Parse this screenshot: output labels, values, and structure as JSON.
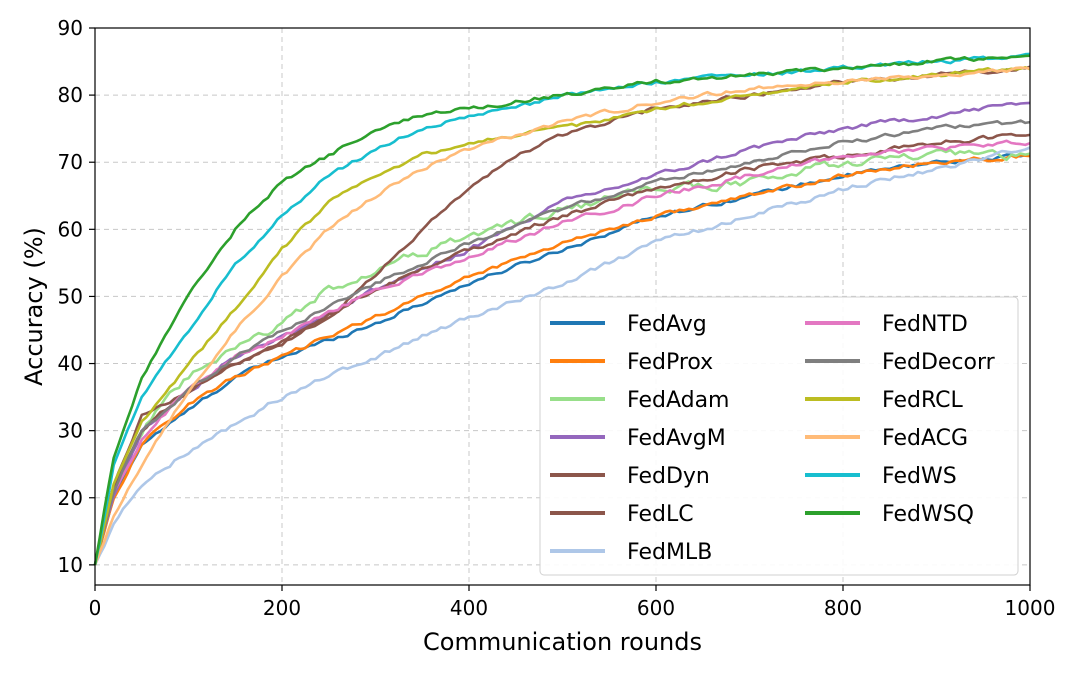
{
  "chart_data": {
    "type": "line",
    "title": "",
    "xlabel": "Communication rounds",
    "ylabel": "Accuracy (%)",
    "xlim": [
      0,
      1000
    ],
    "ylim": [
      7,
      90
    ],
    "xticks": [
      0,
      200,
      400,
      600,
      800,
      1000
    ],
    "yticks": [
      10,
      20,
      30,
      40,
      50,
      60,
      70,
      80,
      90
    ],
    "grid": true,
    "grid_style": "dashed",
    "legend_placement": "lower-right",
    "legend_columns": 2,
    "series": [
      {
        "name": "FedAvg",
        "color": "#1f77b4",
        "x": [
          0,
          20,
          50,
          100,
          150,
          200,
          300,
          400,
          500,
          600,
          700,
          800,
          900,
          1000
        ],
        "values": [
          10,
          20,
          28,
          33,
          38,
          41,
          46,
          52,
          57,
          62,
          65,
          68,
          70,
          71
        ],
        "noise": 0.6
      },
      {
        "name": "FedProx",
        "color": "#ff7f0e",
        "x": [
          0,
          20,
          50,
          100,
          150,
          200,
          300,
          400,
          500,
          600,
          700,
          800,
          900,
          1000
        ],
        "values": [
          10,
          20,
          28,
          34,
          38,
          41,
          47,
          53,
          58,
          62,
          65,
          68,
          70,
          71
        ],
        "noise": 0.6
      },
      {
        "name": "FedAdam",
        "color": "#98df8a",
        "x": [
          0,
          20,
          50,
          100,
          150,
          200,
          250,
          300,
          400,
          500,
          600,
          700,
          800,
          900,
          1000
        ],
        "values": [
          10,
          22,
          30,
          38,
          42,
          46,
          51,
          54,
          59,
          63,
          66,
          67,
          70,
          71,
          71
        ],
        "noise": 1.2
      },
      {
        "name": "FedAvgM",
        "color": "#9467bd",
        "x": [
          0,
          20,
          50,
          100,
          150,
          200,
          300,
          400,
          500,
          600,
          700,
          800,
          900,
          1000
        ],
        "values": [
          10,
          20,
          30,
          36,
          41,
          44,
          51,
          57,
          64,
          68,
          72,
          75,
          77,
          79
        ],
        "noise": 0.7
      },
      {
        "name": "FedDyn",
        "color": "#8c564b",
        "x": [
          0,
          20,
          50,
          100,
          150,
          200,
          250,
          300,
          350,
          400,
          450,
          500,
          550,
          600,
          700,
          800,
          900,
          1000
        ],
        "values": [
          10,
          22,
          32,
          36,
          40,
          43,
          47,
          53,
          60,
          66,
          71,
          74,
          76,
          78,
          80,
          82,
          83,
          84
        ],
        "noise": 0.6
      },
      {
        "name": "FedLC",
        "color": "#8c564b",
        "x": [
          0,
          20,
          50,
          100,
          150,
          200,
          300,
          400,
          500,
          600,
          700,
          800,
          900,
          1000
        ],
        "values": [
          10,
          21,
          30,
          36,
          40,
          43,
          51,
          57,
          62,
          66,
          69,
          71,
          73,
          74
        ],
        "noise": 0.7
      },
      {
        "name": "FedMLB",
        "color": "#aec7e8",
        "x": [
          0,
          20,
          50,
          100,
          150,
          200,
          250,
          300,
          400,
          500,
          600,
          700,
          800,
          900,
          1000
        ],
        "values": [
          10,
          16,
          22,
          27,
          31,
          35,
          38,
          41,
          47,
          52,
          58,
          62,
          66,
          69,
          72
        ],
        "noise": 0.7
      },
      {
        "name": "FedNTD",
        "color": "#e377c2",
        "x": [
          0,
          20,
          50,
          100,
          150,
          200,
          300,
          400,
          500,
          600,
          700,
          800,
          900,
          1000
        ],
        "values": [
          10,
          21,
          29,
          36,
          41,
          44,
          51,
          56,
          61,
          65,
          68,
          71,
          72,
          73
        ],
        "noise": 0.7
      },
      {
        "name": "FedDecorr",
        "color": "#7f7f7f",
        "x": [
          0,
          20,
          50,
          100,
          150,
          200,
          300,
          400,
          500,
          600,
          700,
          800,
          900,
          1000
        ],
        "values": [
          10,
          21,
          30,
          36,
          41,
          45,
          52,
          58,
          63,
          67,
          70,
          73,
          75,
          76
        ],
        "noise": 0.6
      },
      {
        "name": "FedRCL",
        "color": "#bcbd22",
        "x": [
          0,
          20,
          50,
          100,
          150,
          200,
          250,
          300,
          350,
          400,
          450,
          500,
          600,
          700,
          800,
          900,
          1000
        ],
        "values": [
          10,
          22,
          31,
          40,
          48,
          57,
          64,
          68,
          71,
          73,
          74,
          75,
          78,
          80,
          82,
          83,
          84
        ],
        "noise": 0.6
      },
      {
        "name": "FedACG",
        "color": "#ffbb78",
        "x": [
          0,
          20,
          50,
          100,
          150,
          200,
          250,
          300,
          350,
          400,
          450,
          500,
          600,
          700,
          800,
          900,
          1000
        ],
        "values": [
          10,
          17,
          25,
          36,
          45,
          53,
          60,
          65,
          69,
          72,
          74,
          76,
          79,
          81,
          82,
          83,
          84
        ],
        "noise": 0.6
      },
      {
        "name": "FedWS",
        "color": "#17becf",
        "x": [
          0,
          20,
          50,
          100,
          150,
          200,
          250,
          300,
          350,
          400,
          450,
          500,
          600,
          700,
          800,
          900,
          1000
        ],
        "values": [
          10,
          25,
          35,
          45,
          55,
          62,
          68,
          72,
          75,
          77,
          78,
          80,
          82,
          83,
          84,
          85,
          86
        ],
        "noise": 0.6
      },
      {
        "name": "FedWSQ",
        "color": "#2ca02c",
        "x": [
          0,
          20,
          50,
          100,
          150,
          200,
          250,
          300,
          350,
          400,
          450,
          500,
          600,
          700,
          800,
          900,
          1000
        ],
        "values": [
          10,
          26,
          38,
          50,
          60,
          67,
          71,
          75,
          77,
          78,
          79,
          80,
          82,
          83,
          84,
          85,
          86
        ],
        "noise": 0.6
      }
    ]
  }
}
